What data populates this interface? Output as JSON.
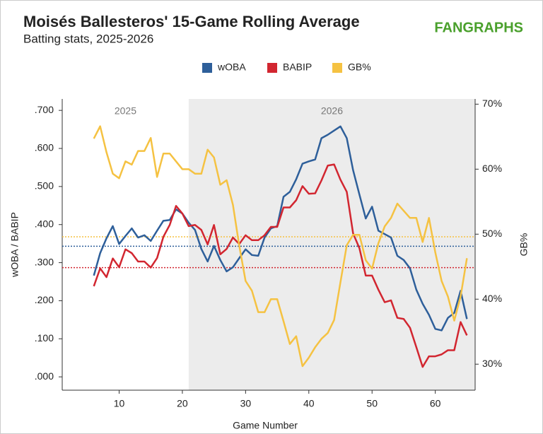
{
  "chart_data": {
    "type": "line",
    "title": "Moisés Ballesteros' 15-Game Rolling Average",
    "subtitle": "Batting stats, 2025-2026",
    "logo": "FANGRAPHS",
    "x_label": "Game Number",
    "y_label": "wOBA / BABIP",
    "y2_label": "GB%",
    "x": [
      6,
      7,
      8,
      9,
      10,
      11,
      12,
      13,
      14,
      15,
      16,
      17,
      18,
      19,
      20,
      21,
      22,
      23,
      24,
      25,
      26,
      27,
      28,
      29,
      30,
      31,
      32,
      33,
      34,
      35,
      36,
      37,
      38,
      39,
      40,
      41,
      42,
      43,
      44,
      45,
      46,
      47,
      48,
      49,
      50,
      51,
      52,
      53,
      54,
      55,
      56,
      57,
      58,
      59,
      60,
      61,
      62,
      63,
      64,
      65
    ],
    "series": [
      {
        "name": "wOBA",
        "color": "#2e5f9a",
        "axis": "y",
        "values": [
          0.266,
          0.325,
          0.364,
          0.396,
          0.349,
          0.37,
          0.39,
          0.366,
          0.372,
          0.357,
          0.384,
          0.41,
          0.412,
          0.44,
          0.429,
          0.405,
          0.386,
          0.336,
          0.303,
          0.344,
          0.307,
          0.277,
          0.288,
          0.312,
          0.335,
          0.32,
          0.318,
          0.366,
          0.39,
          0.396,
          0.473,
          0.486,
          0.519,
          0.56,
          0.566,
          0.571,
          0.627,
          0.636,
          0.647,
          0.658,
          0.627,
          0.543,
          0.479,
          0.416,
          0.447,
          0.384,
          0.375,
          0.366,
          0.318,
          0.307,
          0.285,
          0.229,
          0.192,
          0.163,
          0.126,
          0.122,
          0.155,
          0.168,
          0.226,
          0.152
        ]
      },
      {
        "name": "BABIP",
        "color": "#d22630",
        "axis": "y",
        "values": [
          0.238,
          0.285,
          0.262,
          0.311,
          0.288,
          0.335,
          0.325,
          0.303,
          0.303,
          0.287,
          0.312,
          0.368,
          0.399,
          0.449,
          0.429,
          0.396,
          0.399,
          0.386,
          0.348,
          0.399,
          0.322,
          0.336,
          0.366,
          0.349,
          0.372,
          0.359,
          0.359,
          0.372,
          0.394,
          0.394,
          0.445,
          0.445,
          0.464,
          0.501,
          0.481,
          0.482,
          0.516,
          0.555,
          0.558,
          0.518,
          0.486,
          0.377,
          0.338,
          0.266,
          0.266,
          0.229,
          0.196,
          0.201,
          0.155,
          0.152,
          0.129,
          0.078,
          0.026,
          0.054,
          0.054,
          0.059,
          0.07,
          0.07,
          0.144,
          0.109
        ]
      },
      {
        "name": "GB%",
        "color": "#f5c242",
        "axis": "y2",
        "values": [
          64.7,
          66.6,
          62.6,
          59.3,
          58.6,
          61.2,
          60.7,
          62.8,
          62.8,
          64.8,
          58.8,
          62.4,
          62.4,
          61.2,
          60.0,
          60.0,
          59.3,
          59.3,
          63.0,
          61.8,
          57.6,
          58.3,
          54.5,
          48.2,
          42.8,
          41.3,
          38.0,
          38.0,
          40.0,
          40.0,
          36.6,
          33.1,
          34.3,
          29.7,
          31.0,
          32.6,
          33.9,
          34.8,
          36.8,
          42.6,
          48.3,
          49.9,
          49.9,
          46.0,
          44.7,
          48.6,
          51.2,
          52.5,
          54.7,
          53.6,
          52.5,
          52.5,
          48.8,
          52.5,
          47.2,
          42.8,
          40.4,
          36.7,
          40.4,
          46.3
        ]
      }
    ],
    "reference_lines": [
      {
        "axis": "y",
        "value": 0.343,
        "color": "#2e5f9a"
      },
      {
        "axis": "y",
        "value": 0.287,
        "color": "#d22630"
      },
      {
        "axis": "y2",
        "value": 49.6,
        "color": "#f5c242"
      }
    ],
    "seasons": [
      {
        "label": "2025"
      },
      {
        "label": "2026",
        "start": 21,
        "shade": "#ececec"
      }
    ],
    "xlim": [
      1,
      66.3
    ],
    "xticks": [
      10,
      20,
      30,
      40,
      50,
      60
    ],
    "ylim": [
      -0.035,
      0.73
    ],
    "yticks": [
      {
        "value": 0,
        "label": ".000"
      },
      {
        "value": 0.1,
        "label": ".100"
      },
      {
        "value": 0.2,
        "label": ".200"
      },
      {
        "value": 0.3,
        "label": ".300"
      },
      {
        "value": 0.4,
        "label": ".400"
      },
      {
        "value": 0.5,
        "label": ".500"
      },
      {
        "value": 0.6,
        "label": ".600"
      },
      {
        "value": 0.7,
        "label": ".700"
      }
    ],
    "y2lim": [
      26,
      70.8
    ],
    "y2ticks": [
      {
        "value": 30,
        "label": "30%"
      },
      {
        "value": 40,
        "label": "40%"
      },
      {
        "value": 50,
        "label": "50%"
      },
      {
        "value": 60,
        "label": "60%"
      },
      {
        "value": 70,
        "label": "70%"
      }
    ],
    "legend": "top"
  }
}
